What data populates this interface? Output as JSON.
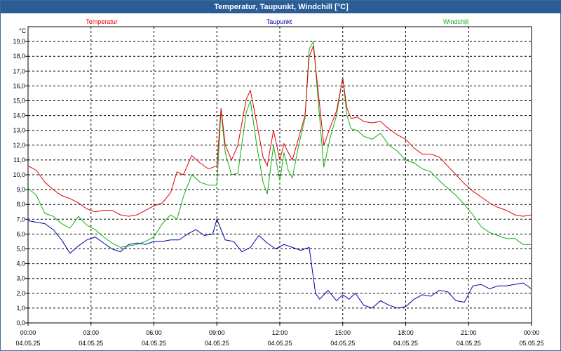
{
  "window": {
    "title": "Temperatur, Taupunkt, Windchill [°C]"
  },
  "colors": {
    "title_bar": "#2a5c96",
    "temperature": "#e00000",
    "dewpoint": "#0000a8",
    "windchill": "#10b010",
    "grid": "#000000"
  },
  "chart_data": {
    "type": "line",
    "title": "Temperatur, Taupunkt, Windchill [°C]",
    "ylabel": "°C",
    "xlabel": "",
    "ylim": [
      0,
      19.5
    ],
    "xlim": [
      0,
      24
    ],
    "grid": true,
    "y_ticks": [
      "0,0",
      "1,0",
      "2,0",
      "3,0",
      "4,0",
      "5,0",
      "6,0",
      "7,0",
      "8,0",
      "9,0",
      "10,0",
      "11,0",
      "12,0",
      "13,0",
      "14,0",
      "15,0",
      "16,0",
      "17,0",
      "18,0",
      "19,0"
    ],
    "x_ticks": [
      {
        "time": "00:00",
        "date": "04.05.25"
      },
      {
        "time": "03:00",
        "date": "04.05.25"
      },
      {
        "time": "06:00",
        "date": "04.05.25"
      },
      {
        "time": "09:00",
        "date": "04.05.25"
      },
      {
        "time": "12:00",
        "date": "04.05.25"
      },
      {
        "time": "15:00",
        "date": "04.05.25"
      },
      {
        "time": "18:00",
        "date": "04.05.25"
      },
      {
        "time": "21:00",
        "date": "04.05.25"
      },
      {
        "time": "00:00",
        "date": "05.05.25"
      }
    ],
    "series": [
      {
        "name": "Temperatur",
        "x": [
          0,
          0.4,
          0.8,
          1.2,
          1.6,
          2,
          2.4,
          2.8,
          3.2,
          3.6,
          4,
          4.4,
          4.8,
          5.2,
          5.6,
          6,
          6.4,
          6.8,
          7.1,
          7.4,
          7.8,
          8.2,
          8.6,
          9,
          9.2,
          9.4,
          9.7,
          10,
          10.4,
          10.6,
          10.9,
          11.2,
          11.4,
          11.7,
          12,
          12.2,
          12.4,
          12.6,
          12.9,
          13.2,
          13.4,
          13.6,
          13.8,
          14.1,
          14.4,
          14.7,
          15,
          15.2,
          15.4,
          15.7,
          16,
          16.4,
          16.8,
          17.2,
          17.6,
          18,
          18.4,
          18.8,
          19.2,
          19.6,
          20,
          20.4,
          20.8,
          21.2,
          21.6,
          22,
          22.4,
          22.8,
          23.2,
          23.6,
          24
        ],
        "values": [
          10.6,
          10.3,
          9.5,
          9.0,
          8.6,
          8.4,
          8.1,
          7.7,
          7.5,
          7.6,
          7.6,
          7.3,
          7.2,
          7.3,
          7.6,
          7.9,
          8.1,
          8.8,
          10.2,
          10.0,
          11.3,
          10.8,
          10.4,
          10.6,
          14.5,
          12.0,
          11.0,
          12.0,
          15.1,
          15.7,
          13.5,
          11.2,
          10.6,
          13.0,
          11.0,
          12.1,
          11.5,
          11.0,
          12.5,
          14.0,
          18.0,
          18.7,
          16.0,
          12.0,
          13.2,
          14.3,
          16.5,
          14.5,
          13.8,
          13.9,
          13.6,
          13.5,
          13.6,
          13.1,
          12.7,
          12.4,
          11.8,
          11.4,
          11.4,
          11.2,
          10.6,
          10.0,
          9.4,
          8.9,
          8.5,
          8.1,
          7.8,
          7.6,
          7.3,
          7.2,
          7.3
        ]
      },
      {
        "name": "Taupunkt",
        "x": [
          0,
          0.4,
          0.8,
          1.2,
          1.6,
          2,
          2.4,
          2.8,
          3.2,
          3.6,
          4,
          4.4,
          4.8,
          5.2,
          5.6,
          6,
          6.4,
          6.8,
          7.2,
          7.6,
          8,
          8.4,
          8.8,
          9,
          9.4,
          9.8,
          10.2,
          10.6,
          11,
          11.4,
          11.8,
          12.2,
          12.6,
          13,
          13.4,
          13.7,
          13.9,
          14.3,
          14.7,
          15,
          15.3,
          15.6,
          16,
          16.4,
          16.8,
          17.2,
          17.6,
          18,
          18.4,
          18.8,
          19.2,
          19.6,
          20,
          20.4,
          20.8,
          21.2,
          21.6,
          22,
          22.4,
          22.8,
          23.2,
          23.6,
          24
        ],
        "values": [
          6.9,
          6.8,
          6.7,
          6.3,
          5.6,
          4.7,
          5.2,
          5.6,
          5.8,
          5.4,
          5.0,
          4.8,
          5.3,
          5.4,
          5.3,
          5.5,
          5.5,
          5.6,
          5.6,
          6.0,
          6.3,
          5.9,
          6.0,
          7.0,
          5.6,
          5.5,
          4.8,
          5.1,
          5.9,
          5.4,
          5.0,
          5.3,
          5.1,
          4.9,
          5.1,
          2.0,
          1.6,
          2.2,
          1.5,
          1.9,
          1.6,
          2.0,
          1.2,
          1.0,
          1.5,
          1.2,
          1.0,
          1.1,
          1.6,
          1.9,
          1.8,
          2.2,
          2.1,
          1.5,
          1.4,
          2.5,
          2.6,
          2.3,
          2.5,
          2.5,
          2.6,
          2.7,
          2.3
        ]
      },
      {
        "name": "Windchill",
        "x": [
          0,
          0.4,
          0.8,
          1.2,
          1.6,
          2,
          2.4,
          2.8,
          3.2,
          3.6,
          4,
          4.4,
          4.8,
          5.2,
          5.6,
          6,
          6.4,
          6.8,
          7.1,
          7.4,
          7.8,
          8.2,
          8.6,
          9,
          9.2,
          9.4,
          9.7,
          10,
          10.4,
          10.6,
          10.9,
          11.2,
          11.4,
          11.7,
          12,
          12.2,
          12.4,
          12.6,
          12.9,
          13.2,
          13.4,
          13.6,
          13.8,
          14.1,
          14.4,
          14.7,
          15,
          15.2,
          15.4,
          15.7,
          16,
          16.4,
          16.8,
          17.2,
          17.6,
          18,
          18.4,
          18.8,
          19.2,
          19.6,
          20,
          20.4,
          20.8,
          21.2,
          21.6,
          22,
          22.4,
          22.8,
          23.2,
          23.6,
          24
        ],
        "values": [
          9.1,
          8.6,
          7.4,
          7.2,
          6.7,
          6.4,
          7.2,
          6.6,
          6.3,
          5.8,
          5.4,
          5.1,
          5.2,
          5.3,
          5.5,
          5.8,
          6.7,
          7.3,
          7.0,
          8.5,
          10.0,
          9.5,
          9.3,
          9.3,
          14.4,
          11.5,
          10.0,
          10.1,
          14.2,
          15.0,
          12.0,
          9.5,
          8.7,
          12.0,
          9.6,
          11.5,
          10.3,
          9.8,
          12.0,
          13.8,
          18.5,
          19.0,
          15.5,
          10.5,
          12.5,
          14.0,
          16.6,
          14.0,
          13.1,
          13.0,
          12.6,
          12.4,
          12.8,
          12.0,
          11.6,
          11.0,
          10.8,
          10.4,
          10.2,
          9.6,
          9.1,
          8.6,
          8.0,
          7.3,
          6.5,
          6.1,
          5.9,
          5.7,
          5.7,
          5.3,
          5.3
        ]
      }
    ]
  }
}
